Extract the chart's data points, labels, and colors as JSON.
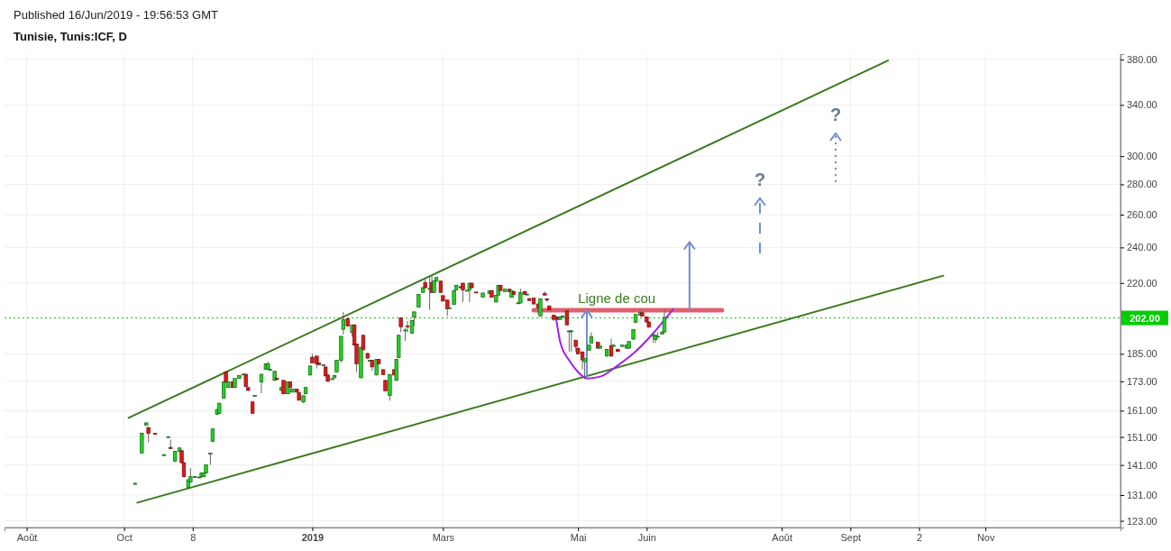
{
  "chart_data": {
    "type": "candlestick",
    "title": "Tunisie, Tunis:ICF, D",
    "subtitle": "Published 16/Jun/2019 - 19:56:53 GMT",
    "x": [
      "2018-10-13",
      "2018-10-16",
      "2018-10-18",
      "2018-10-19",
      "2018-10-22",
      "2018-10-26",
      "2018-10-28",
      "2018-10-29",
      "2018-10-31",
      "2018-11-02",
      "2018-11-03",
      "2018-11-04",
      "2018-11-06",
      "2018-11-07",
      "2018-11-09",
      "2018-11-11",
      "2018-11-12",
      "2018-11-13",
      "2018-11-14",
      "2018-11-16",
      "2018-11-17",
      "2018-11-19",
      "2018-11-20",
      "2018-11-22",
      "2018-11-23",
      "2018-11-24",
      "2018-11-26",
      "2018-11-27",
      "2018-11-29",
      "2018-12-01",
      "2018-12-02",
      "2018-12-03",
      "2018-12-05",
      "2018-12-06",
      "2018-12-09",
      "2018-12-11",
      "2018-12-12",
      "2018-12-13",
      "2018-12-15",
      "2018-12-16",
      "2018-12-18",
      "2018-12-19",
      "2018-12-21",
      "2018-12-22",
      "2018-12-23",
      "2018-12-25",
      "2018-12-26",
      "2018-12-28",
      "2018-12-29",
      "2018-12-31",
      "2019-01-01",
      "2019-01-03",
      "2019-01-04",
      "2019-01-06",
      "2019-01-07",
      "2019-01-08",
      "2019-01-10",
      "2019-01-11",
      "2019-01-12",
      "2019-01-14",
      "2019-01-15",
      "2019-01-17",
      "2019-01-19",
      "2019-01-20",
      "2019-01-21",
      "2019-01-23",
      "2019-01-24",
      "2019-01-26",
      "2019-01-27",
      "2019-01-28",
      "2019-01-30",
      "2019-01-31",
      "2019-02-02",
      "2019-02-03",
      "2019-02-05",
      "2019-02-07",
      "2019-02-08",
      "2019-02-09",
      "2019-02-10",
      "2019-02-12",
      "2019-02-13",
      "2019-02-15",
      "2019-02-16",
      "2019-02-18",
      "2019-02-20",
      "2019-02-21",
      "2019-02-23",
      "2019-02-24",
      "2019-02-25",
      "2019-02-26",
      "2019-02-28",
      "2019-03-01",
      "2019-03-03",
      "2019-03-04",
      "2019-03-06",
      "2019-03-07",
      "2019-03-09",
      "2019-03-10",
      "2019-03-12",
      "2019-03-13",
      "2019-03-14",
      "2019-03-16",
      "2019-03-19",
      "2019-03-22",
      "2019-03-23",
      "2019-03-25",
      "2019-03-26",
      "2019-03-27",
      "2019-03-29",
      "2019-03-31",
      "2019-04-01",
      "2019-04-02",
      "2019-04-04",
      "2019-04-05",
      "2019-04-07",
      "2019-04-08",
      "2019-04-09",
      "2019-04-11",
      "2019-04-13",
      "2019-04-14",
      "2019-04-16",
      "2019-04-17",
      "2019-04-18",
      "2019-04-20",
      "2019-04-22",
      "2019-04-23",
      "2019-04-24",
      "2019-04-26",
      "2019-04-27",
      "2019-04-28",
      "2019-04-30",
      "2019-05-01",
      "2019-05-03",
      "2019-05-04",
      "2019-05-06",
      "2019-05-07",
      "2019-05-10",
      "2019-05-11",
      "2019-05-14",
      "2019-05-16",
      "2019-05-17",
      "2019-05-19",
      "2019-05-21",
      "2019-05-23",
      "2019-05-24",
      "2019-05-26",
      "2019-05-27",
      "2019-05-29",
      "2019-05-30",
      "2019-06-01",
      "2019-06-02",
      "2019-06-04",
      "2019-06-05",
      "2019-06-06",
      "2019-06-08",
      "2019-06-09"
    ],
    "ohlc": [
      [
        134.7,
        135.2,
        134.3,
        134.8
      ],
      [
        145.2,
        152.6,
        145.0,
        152.4
      ],
      [
        155.4,
        156.5,
        155.2,
        156.3
      ],
      [
        154.5,
        154.8,
        149.0,
        152.3
      ],
      [
        152.3,
        152.5,
        151.8,
        152.0
      ],
      [
        144.5,
        144.8,
        144.2,
        144.6
      ],
      [
        151.0,
        151.2,
        150.8,
        151.1
      ],
      [
        147.2,
        150.0,
        146.6,
        146.8
      ],
      [
        142.3,
        146.0,
        142.0,
        145.8
      ],
      [
        145.8,
        147.3,
        145.5,
        147.0
      ],
      [
        146.0,
        146.3,
        141.5,
        141.8
      ],
      [
        141.8,
        142.0,
        136.8,
        137.0
      ],
      [
        133.5,
        136.2,
        133.3,
        136.0
      ],
      [
        135.3,
        140.0,
        135.0,
        137.0
      ],
      [
        137.0,
        137.2,
        136.8,
        137.1
      ],
      [
        136.8,
        137.0,
        136.6,
        136.9
      ],
      [
        137.0,
        138.5,
        136.8,
        138.3
      ],
      [
        137.0,
        138.5,
        136.8,
        138.3
      ],
      [
        138.3,
        141.2,
        138.1,
        141.0
      ],
      [
        145.0,
        145.2,
        141.0,
        145.1
      ],
      [
        149.4,
        154.2,
        149.2,
        154.0
      ],
      [
        159.6,
        161.7,
        159.4,
        161.5
      ],
      [
        160.0,
        164.2,
        159.8,
        164.0
      ],
      [
        166.0,
        172.9,
        165.8,
        172.7
      ],
      [
        177.0,
        177.5,
        172.5,
        172.7
      ],
      [
        170.4,
        172.9,
        170.2,
        172.7
      ],
      [
        172.7,
        172.9,
        170.2,
        170.4
      ],
      [
        170.4,
        174.4,
        170.2,
        174.2
      ],
      [
        174.2,
        175.7,
        174.0,
        175.5
      ],
      [
        176.0,
        176.2,
        175.8,
        176.1
      ],
      [
        176.0,
        176.2,
        170.6,
        170.8
      ],
      [
        170.4,
        170.6,
        169.0,
        169.2
      ],
      [
        164.5,
        164.7,
        159.8,
        160.0
      ],
      [
        167.0,
        167.2,
        166.8,
        167.1
      ],
      [
        172.7,
        176.2,
        168.0,
        176.0
      ],
      [
        178.1,
        180.8,
        177.9,
        180.6
      ],
      [
        178.1,
        181.5,
        177.9,
        180.6
      ],
      [
        178.0,
        178.2,
        177.8,
        178.1
      ],
      [
        173.4,
        177.5,
        173.2,
        177.3
      ],
      [
        174.3,
        174.5,
        173.6,
        173.8
      ],
      [
        169.2,
        170.6,
        169.0,
        170.4
      ],
      [
        173.4,
        173.6,
        167.6,
        167.8
      ],
      [
        167.8,
        172.9,
        167.6,
        172.7
      ],
      [
        172.7,
        172.9,
        170.2,
        170.4
      ],
      [
        168.5,
        169.9,
        168.3,
        169.7
      ],
      [
        169.7,
        169.9,
        168.3,
        168.5
      ],
      [
        168.2,
        168.4,
        165.0,
        165.2
      ],
      [
        164.5,
        167.2,
        164.0,
        167.0
      ],
      [
        167.8,
        170.6,
        167.6,
        170.4
      ],
      [
        175.7,
        179.8,
        175.5,
        179.6
      ],
      [
        183.5,
        185.0,
        180.8,
        181.0
      ],
      [
        184.0,
        184.2,
        178.5,
        180.6
      ],
      [
        181.0,
        181.2,
        180.0,
        180.2
      ],
      [
        180.0,
        180.2,
        179.8,
        180.1
      ],
      [
        179.2,
        179.4,
        175.1,
        175.3
      ],
      [
        175.7,
        175.9,
        172.8,
        173.0
      ],
      [
        174.0,
        174.2,
        173.8,
        174.1
      ],
      [
        174.5,
        175.7,
        174.3,
        175.5
      ],
      [
        177.0,
        182.3,
        176.8,
        182.1
      ],
      [
        182.1,
        193.3,
        181.0,
        193.1
      ],
      [
        196.5,
        205.0,
        194.0,
        201.2
      ],
      [
        201.7,
        201.9,
        197.8,
        198.0
      ],
      [
        194.9,
        198.8,
        193.0,
        198.6
      ],
      [
        198.6,
        198.8,
        188.8,
        189.0
      ],
      [
        189.5,
        189.7,
        177.0,
        180.6
      ],
      [
        174.5,
        188.2,
        174.3,
        188.0
      ],
      [
        193.6,
        193.8,
        186.7,
        186.9
      ],
      [
        185.2,
        185.4,
        182.9,
        183.1
      ],
      [
        182.0,
        182.2,
        181.8,
        182.1
      ],
      [
        182.1,
        182.3,
        177.5,
        179.2
      ],
      [
        175.7,
        182.7,
        175.5,
        182.5
      ],
      [
        182.5,
        182.7,
        180.4,
        180.6
      ],
      [
        178.0,
        178.2,
        175.7,
        175.9
      ],
      [
        173.4,
        173.6,
        168.8,
        169.0
      ],
      [
        167.1,
        176.1,
        165.0,
        175.9
      ],
      [
        178.0,
        178.2,
        175.5,
        175.7
      ],
      [
        173.4,
        182.7,
        173.2,
        182.5
      ],
      [
        183.3,
        193.8,
        183.1,
        193.6
      ],
      [
        202.1,
        202.3,
        195.0,
        197.7
      ],
      [
        196.0,
        197.0,
        191.0,
        196.1
      ],
      [
        198.0,
        200.5,
        195.0,
        197.6
      ],
      [
        194.6,
        201.0,
        194.4,
        200.8
      ],
      [
        202.5,
        205.2,
        198.0,
        205.0
      ],
      [
        207.5,
        214.1,
        207.3,
        213.9
      ],
      [
        215.0,
        217.7,
        214.8,
        217.5
      ],
      [
        220.3,
        222.0,
        217.3,
        217.5
      ],
      [
        217.0,
        224.0,
        206.0,
        217.1
      ],
      [
        220.3,
        224.0,
        214.8,
        215.0
      ],
      [
        215.0,
        221.3,
        214.8,
        221.1
      ],
      [
        221.0,
        223.2,
        220.8,
        223.0
      ],
      [
        221.0,
        221.2,
        214.8,
        215.0
      ],
      [
        213.3,
        213.5,
        210.3,
        210.5
      ],
      [
        211.0,
        211.2,
        203.0,
        206.6
      ],
      [
        207.0,
        207.2,
        206.8,
        207.1
      ],
      [
        208.8,
        216.2,
        208.6,
        216.0
      ],
      [
        216.3,
        219.0,
        216.1,
        218.8
      ],
      [
        218.0,
        218.2,
        217.3,
        217.5
      ],
      [
        219.9,
        220.1,
        210.0,
        216.3
      ],
      [
        216.0,
        216.2,
        215.8,
        216.1
      ],
      [
        216.3,
        220.1,
        210.0,
        219.9
      ],
      [
        219.9,
        220.1,
        217.3,
        217.5
      ],
      [
        215.2,
        215.4,
        214.6,
        214.8
      ],
      [
        212.5,
        214.9,
        212.3,
        214.7
      ],
      [
        214.5,
        216.0,
        214.3,
        215.8
      ],
      [
        216.0,
        216.2,
        212.3,
        212.5
      ],
      [
        210.0,
        213.6,
        209.8,
        213.4
      ],
      [
        213.6,
        219.0,
        213.4,
        218.8
      ],
      [
        218.8,
        219.0,
        215.8,
        216.0
      ],
      [
        215.4,
        216.9,
        215.2,
        216.7
      ],
      [
        216.7,
        216.9,
        215.2,
        215.4
      ],
      [
        212.4,
        216.2,
        212.2,
        216.0
      ],
      [
        215.4,
        215.6,
        213.8,
        214.0
      ],
      [
        209.5,
        209.7,
        209.3,
        209.6
      ],
      [
        209.5,
        217.0,
        209.3,
        215.0
      ],
      [
        215.5,
        215.7,
        213.8,
        214.0
      ],
      [
        214.0,
        214.2,
        213.8,
        214.1
      ],
      [
        211.8,
        212.0,
        210.6,
        210.8
      ],
      [
        212.0,
        212.2,
        208.8,
        209.0
      ],
      [
        209.0,
        209.2,
        204.0,
        207.0
      ],
      [
        203.0,
        211.9,
        202.8,
        211.7
      ],
      [
        214.4,
        215.5,
        213.4,
        213.6
      ],
      [
        211.7,
        211.9,
        210.0,
        211.0
      ],
      [
        208.0,
        208.2,
        205.8,
        206.0
      ],
      [
        203.3,
        203.5,
        200.5,
        201.3
      ],
      [
        202.5,
        202.7,
        201.1,
        201.3
      ],
      [
        201.3,
        202.7,
        201.1,
        202.5
      ],
      [
        202.5,
        203.2,
        202.3,
        203.0
      ],
      [
        205.5,
        205.7,
        198.4,
        198.6
      ],
      [
        195.6,
        196.0,
        186.0,
        195.7
      ],
      [
        195.6,
        196.0,
        186.0,
        195.7
      ],
      [
        191.3,
        191.5,
        186.0,
        188.4
      ],
      [
        187.6,
        187.8,
        184.8,
        185.0
      ],
      [
        185.9,
        186.1,
        178.0,
        182.3
      ],
      [
        181.5,
        183.2,
        175.0,
        183.0
      ],
      [
        186.7,
        189.2,
        186.5,
        189.0
      ],
      [
        190.0,
        195.0,
        189.8,
        193.0
      ],
      [
        190.3,
        190.5,
        187.4,
        187.6
      ],
      [
        187.6,
        188.8,
        187.4,
        188.6
      ],
      [
        184.0,
        187.2,
        183.8,
        187.0
      ],
      [
        188.8,
        192.0,
        183.8,
        184.0
      ],
      [
        188.4,
        189.2,
        188.2,
        189.0
      ],
      [
        187.1,
        187.3,
        185.9,
        186.1
      ],
      [
        188.4,
        189.2,
        188.2,
        189.0
      ],
      [
        187.6,
        189.2,
        187.4,
        189.0
      ],
      [
        187.6,
        190.9,
        187.4,
        190.7
      ],
      [
        191.8,
        196.5,
        191.6,
        196.3
      ],
      [
        199.8,
        203.9,
        199.6,
        203.7
      ],
      [
        203.3,
        206.0,
        203.1,
        204.6
      ],
      [
        204.6,
        204.8,
        202.7,
        202.9
      ],
      [
        202.5,
        202.7,
        199.8,
        200.0
      ],
      [
        200.0,
        200.2,
        197.3,
        197.5
      ],
      [
        193.2,
        194.1,
        190.0,
        193.9
      ],
      [
        191.6,
        193.8,
        190.0,
        193.6
      ],
      [
        193.0,
        195.0,
        192.8,
        193.1
      ],
      [
        194.2,
        195.4,
        194.0,
        195.2
      ],
      [
        195.2,
        206.0,
        195.0,
        202.3
      ]
    ],
    "series": [
      {
        "type": "line",
        "color": "#3a7a1e",
        "x": [
          "2018-10-10",
          "2019-09-18"
        ],
        "values": [
          158.2,
          379
        ]
      },
      {
        "type": "line",
        "color": "#3a7a1e",
        "x": [
          "2018-10-14",
          "2019-10-13"
        ],
        "values": [
          128.6,
          224
        ]
      },
      {
        "type": "line",
        "color": "#e0606f",
        "x": [
          "2019-04-11",
          "2019-07-05"
        ],
        "values": [
          205.8,
          205.8
        ]
      },
      {
        "type": "line",
        "color": "#a020f0",
        "x": [
          "2019-04-21",
          "2019-04-23",
          "2019-04-27",
          "2019-05-01",
          "2019-05-05",
          "2019-05-11",
          "2019-05-19",
          "2019-05-27",
          "2019-06-04",
          "2019-06-13"
        ],
        "values": [
          202.6,
          190.3,
          182.1,
          177,
          174.2,
          175,
          179.9,
          186.1,
          194.6,
          206.3
        ]
      }
    ],
    "annotations": [
      {
        "text": "Ligne de cou",
        "x": "2019-05-01",
        "y": 205.8
      },
      "?",
      "?"
    ],
    "ref_lines": [
      {
        "axis": "y",
        "value": 202,
        "label": "202.00",
        "color": "#00cc00",
        "line_style": "dotted"
      }
    ],
    "log": true,
    "grid": true,
    "xlim": [
      "2018-08-15",
      "2020-01-01"
    ],
    "xticks": [
      {
        "value": "2018-08-25",
        "label": "Août"
      },
      {
        "value": "2018-10-08",
        "label": "Oct"
      },
      {
        "value": "2018-11-08",
        "label": "8"
      },
      {
        "value": "2019-01-01",
        "label": "2019"
      },
      {
        "value": "2019-03-01",
        "label": "Mars"
      },
      {
        "value": "2019-05-01",
        "label": "Mai"
      },
      {
        "value": "2019-06-01",
        "label": "Juin"
      },
      {
        "value": "2019-08-01",
        "label": "Août"
      },
      {
        "value": "2019-09-01",
        "label": "Sept"
      },
      {
        "value": "2019-10-02",
        "label": "2"
      },
      {
        "value": "2019-11-01",
        "label": "Nov"
      }
    ],
    "ylim": [
      121,
      385
    ],
    "yticks": [
      {
        "value": 123,
        "label": "123.00"
      },
      {
        "value": 131,
        "label": "131.00"
      },
      {
        "value": 141,
        "label": "141.00"
      },
      {
        "value": 151,
        "label": "151.00"
      },
      {
        "value": 161,
        "label": "161.00"
      },
      {
        "value": 173,
        "label": "173.00"
      },
      {
        "value": 185,
        "label": "185.00"
      },
      {
        "value": 220,
        "label": "220.00"
      },
      {
        "value": 240,
        "label": "240.00"
      },
      {
        "value": 260,
        "label": "260.00"
      },
      {
        "value": 280,
        "label": "280.00"
      },
      {
        "value": 300,
        "label": "300.00"
      },
      {
        "value": 340,
        "label": "340.00"
      },
      {
        "value": 380,
        "label": "380.00"
      }
    ]
  }
}
